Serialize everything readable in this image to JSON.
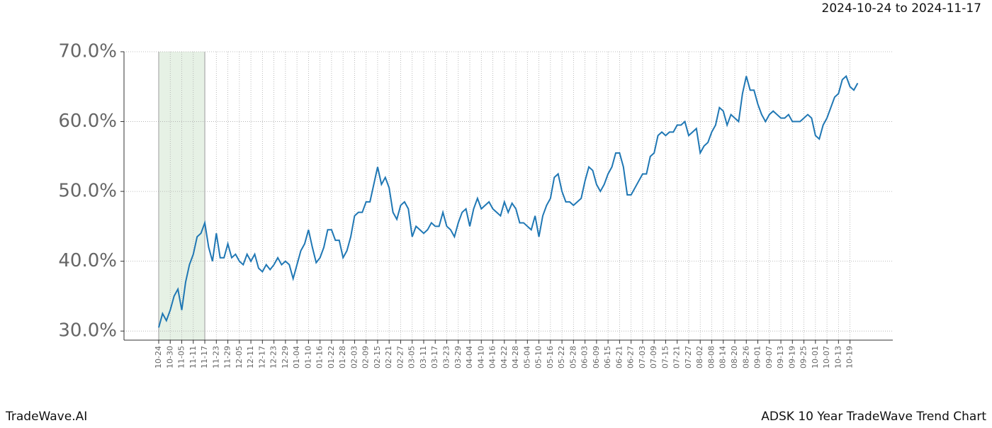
{
  "chart_data": {
    "type": "line",
    "title": "ADSK 10 Year TradeWave Trend Chart",
    "subtitle": "2024-10-24 to 2024-11-17",
    "brand": "TradeWave.AI",
    "highlight_range": [
      "10-24",
      "11-17"
    ],
    "highlight_color": "#d5e8d4",
    "grid": true,
    "categories": [
      "10-24",
      null,
      null,
      "10-30",
      null,
      null,
      "11-05",
      null,
      null,
      "11-11",
      null,
      null,
      "11-17",
      null,
      null,
      "11-23",
      null,
      null,
      "11-29",
      null,
      null,
      "12-05",
      null,
      null,
      "12-11",
      null,
      null,
      "12-17",
      null,
      null,
      "12-23",
      null,
      null,
      "12-29",
      null,
      null,
      "01-04",
      null,
      null,
      "01-10",
      null,
      null,
      "01-16",
      null,
      null,
      "01-22",
      null,
      null,
      "01-28",
      null,
      null,
      "02-03",
      null,
      null,
      "02-09",
      null,
      null,
      "02-15",
      null,
      null,
      "02-21",
      null,
      null,
      "02-27",
      null,
      null,
      "03-05",
      null,
      null,
      "03-11",
      null,
      null,
      "03-17",
      null,
      null,
      "03-23",
      null,
      null,
      "03-29",
      null,
      null,
      "04-04",
      null,
      null,
      "04-10",
      null,
      null,
      "04-16",
      null,
      null,
      "04-22",
      null,
      null,
      "04-28",
      null,
      null,
      "05-04",
      null,
      null,
      "05-10",
      null,
      null,
      "05-16",
      null,
      null,
      "05-22",
      null,
      null,
      "05-28",
      null,
      null,
      "06-03",
      null,
      null,
      "06-09",
      null,
      null,
      "06-15",
      null,
      null,
      "06-21",
      null,
      null,
      "06-27",
      null,
      null,
      "07-03",
      null,
      null,
      "07-09",
      null,
      null,
      "07-15",
      null,
      null,
      "07-21",
      null,
      null,
      "07-27",
      null,
      null,
      "08-02",
      null,
      null,
      "08-08",
      null,
      null,
      "08-14",
      null,
      null,
      "08-20",
      null,
      null,
      "08-26",
      null,
      null,
      "09-01",
      null,
      null,
      "09-07",
      null,
      null,
      "09-13",
      null,
      null,
      "09-19",
      null,
      null,
      "09-25",
      null,
      null,
      "10-01",
      null,
      null,
      "10-07",
      null,
      null,
      "10-13",
      null,
      null,
      "10-19",
      null,
      null
    ],
    "series": [
      {
        "color": "#1f77b4",
        "values": [
          30.5,
          32.5,
          31.5,
          33,
          35,
          36,
          33,
          37,
          39.5,
          41,
          43.5,
          44,
          45.5,
          42,
          40,
          44,
          40.5,
          40.5,
          42.5,
          40.5,
          41,
          40,
          39.5,
          41,
          40,
          41,
          39,
          38.5,
          39.5,
          38.8,
          39.5,
          40.5,
          39.5,
          40,
          39.5,
          37.5,
          39.5,
          41.5,
          42.5,
          44.5,
          42,
          39.8,
          40.5,
          42,
          44.5,
          44.5,
          43,
          43,
          40.5,
          41.5,
          43.5,
          46.5,
          47,
          47,
          48.5,
          48.5,
          51,
          53.5,
          51,
          52,
          50.5,
          47,
          46,
          48,
          48.5,
          47.5,
          43.5,
          45,
          44.5,
          44,
          44.5,
          45.5,
          45,
          45,
          47,
          45,
          44.5,
          43.5,
          45.5,
          47,
          47.5,
          45,
          47.5,
          49,
          47.5,
          48,
          48.5,
          47.5,
          47,
          46.5,
          48.5,
          47,
          48.3,
          47.5,
          45.5,
          45.5,
          45,
          44.5,
          46.5,
          43.5,
          46.5,
          48,
          49,
          52,
          52.5,
          50,
          48.5,
          48.5,
          48,
          48.5,
          49,
          51.5,
          53.5,
          53,
          51,
          50,
          51,
          52.5,
          53.5,
          55.5,
          55.5,
          53.5,
          49.5,
          49.5,
          50.5,
          51.5,
          52.5,
          52.5,
          55,
          55.5,
          58,
          58.5,
          58,
          58.5,
          58.5,
          59.5,
          59.5,
          60,
          58,
          58.5,
          59,
          55.5,
          56.5,
          57,
          58.5,
          59.5,
          62,
          61.5,
          59.5,
          61,
          60.5,
          60,
          64,
          66.5,
          64.5,
          64.5,
          62.5,
          61,
          60,
          61,
          61.5,
          61,
          60.5,
          60.5,
          61,
          60,
          60,
          60,
          60.5,
          61,
          60.5,
          58,
          57.5,
          59.5,
          60.5,
          62,
          63.5,
          64,
          66,
          66.5,
          65,
          64.5,
          65.5
        ]
      }
    ],
    "ylim": [
      28.7,
      70
    ],
    "yticks": [
      {
        "value": 30,
        "label": "30.0%"
      },
      {
        "value": 40,
        "label": "40.0%"
      },
      {
        "value": 50,
        "label": "50.0%"
      },
      {
        "value": 60,
        "label": "60.0%"
      },
      {
        "value": 70,
        "label": "70.0%"
      }
    ]
  }
}
